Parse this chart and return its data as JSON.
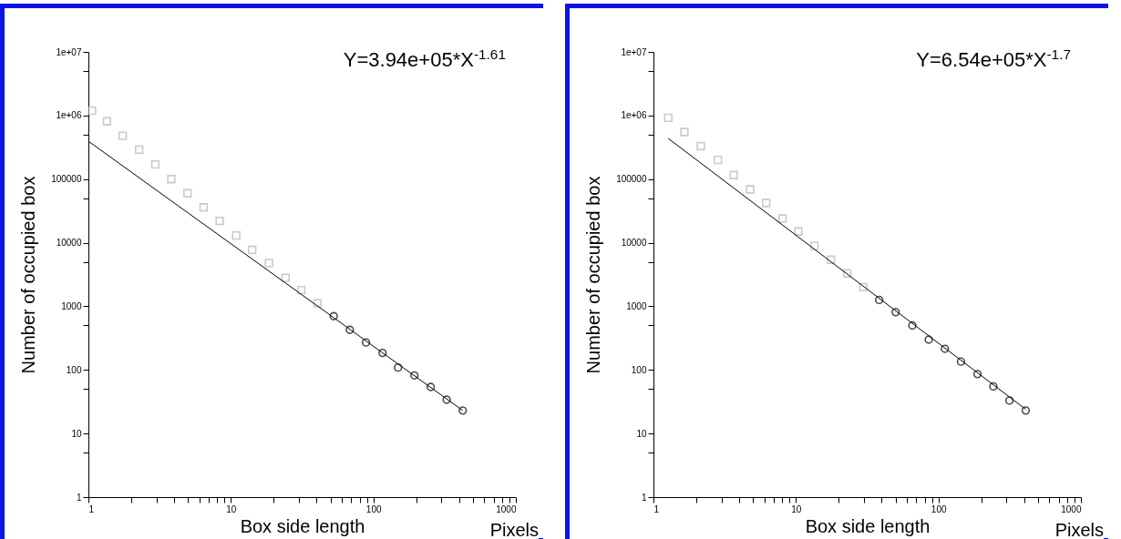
{
  "chart_data": [
    {
      "type": "scatter",
      "xlabel": "Box side length",
      "ylabel": "Number of occupied box",
      "annotations": [
        "Y=3.94e+05*X$^{-1.61}$",
        "Pixels"
      ],
      "log": "xy",
      "grid": false,
      "xlim": [
        1,
        1000
      ],
      "ylim": [
        1,
        10000000
      ],
      "xticks": [
        1,
        {
          "value": 2,
          "label": null
        },
        {
          "value": 3,
          "label": null
        },
        {
          "value": 4,
          "label": null
        },
        {
          "value": 5,
          "label": null
        },
        {
          "value": 6,
          "label": null
        },
        {
          "value": 7,
          "label": null
        },
        {
          "value": 8,
          "label": null
        },
        {
          "value": 9,
          "label": null
        },
        10,
        {
          "value": 20,
          "label": null
        },
        {
          "value": 30,
          "label": null
        },
        {
          "value": 40,
          "label": null
        },
        {
          "value": 50,
          "label": null
        },
        {
          "value": 60,
          "label": null
        },
        {
          "value": 70,
          "label": null
        },
        {
          "value": 80,
          "label": null
        },
        {
          "value": 90,
          "label": null
        },
        100,
        {
          "value": 200,
          "label": null
        },
        {
          "value": 300,
          "label": null
        },
        {
          "value": 400,
          "label": null
        },
        {
          "value": 500,
          "label": null
        },
        {
          "value": 600,
          "label": null
        },
        {
          "value": 700,
          "label": null
        },
        {
          "value": 800,
          "label": null
        },
        {
          "value": 900,
          "label": null
        },
        1000
      ],
      "yticks": [
        1,
        {
          "value": 5,
          "label": null
        },
        10,
        {
          "value": 50,
          "label": null
        },
        100,
        {
          "value": 500,
          "label": null
        },
        1000,
        {
          "value": 5000,
          "label": null
        },
        10000,
        {
          "value": 50000,
          "label": null
        },
        100000,
        {
          "value": 500000,
          "label": null
        },
        {
          "value": 1000000,
          "label": "1e+06"
        },
        {
          "value": 5000000,
          "label": null
        },
        {
          "value": 10000000,
          "label": "1e+07"
        }
      ],
      "series": [
        {
          "marker": "square",
          "color": "#b4b4b4",
          "x": [
            1.06,
            1.35,
            1.74,
            2.27,
            2.95,
            3.82,
            4.96,
            6.43,
            8.34,
            10.9,
            14.1,
            18.5,
            24.2,
            31.2,
            40.5
          ],
          "values": [
            1190000,
            810000,
            480000,
            290000,
            170000,
            100000,
            60000,
            36000,
            22000,
            13000,
            7700,
            4800,
            2800,
            1800,
            1120
          ]
        },
        {
          "marker": "circle",
          "color": "#000000",
          "x": [
            52.7,
            68.4,
            88.8,
            116,
            149,
            194,
            253,
            327,
            424
          ],
          "values": [
            700,
            427,
            270,
            185,
            109,
            82,
            54,
            34,
            23
          ]
        },
        {
          "type": "line",
          "color": "#000000",
          "x": [
            1,
            424
          ],
          "values": [
            394000,
            23
          ]
        }
      ]
    },
    {
      "type": "scatter",
      "xlabel": "Box side length",
      "ylabel": "Number of occupied box",
      "annotations": [
        "Y=6.54e+05*X$^{-1.7}$",
        "Pixels"
      ],
      "log": "xy",
      "grid": false,
      "xlim": [
        1,
        1000
      ],
      "ylim": [
        1,
        10000000
      ],
      "xticks": [
        1,
        {
          "value": 2,
          "label": null
        },
        {
          "value": 3,
          "label": null
        },
        {
          "value": 4,
          "label": null
        },
        {
          "value": 5,
          "label": null
        },
        {
          "value": 6,
          "label": null
        },
        {
          "value": 7,
          "label": null
        },
        {
          "value": 8,
          "label": null
        },
        {
          "value": 9,
          "label": null
        },
        10,
        {
          "value": 20,
          "label": null
        },
        {
          "value": 30,
          "label": null
        },
        {
          "value": 40,
          "label": null
        },
        {
          "value": 50,
          "label": null
        },
        {
          "value": 60,
          "label": null
        },
        {
          "value": 70,
          "label": null
        },
        {
          "value": 80,
          "label": null
        },
        {
          "value": 90,
          "label": null
        },
        100,
        {
          "value": 200,
          "label": null
        },
        {
          "value": 300,
          "label": null
        },
        {
          "value": 400,
          "label": null
        },
        {
          "value": 500,
          "label": null
        },
        {
          "value": 600,
          "label": null
        },
        {
          "value": 700,
          "label": null
        },
        {
          "value": 800,
          "label": null
        },
        {
          "value": 900,
          "label": null
        },
        1000
      ],
      "yticks": [
        1,
        {
          "value": 5,
          "label": null
        },
        10,
        {
          "value": 50,
          "label": null
        },
        100,
        {
          "value": 500,
          "label": null
        },
        1000,
        {
          "value": 5000,
          "label": null
        },
        10000,
        {
          "value": 50000,
          "label": null
        },
        100000,
        {
          "value": 500000,
          "label": null
        },
        {
          "value": 1000000,
          "label": "1e+06"
        },
        {
          "value": 5000000,
          "label": null
        },
        {
          "value": 10000000,
          "label": "1e+07"
        }
      ],
      "series": [
        {
          "marker": "square",
          "color": "#b4b4b4",
          "x": [
            1.27,
            1.65,
            2.15,
            2.83,
            3.66,
            4.77,
            6.18,
            8.05,
            10.4,
            13.5,
            17.6,
            22.9,
            29.7
          ],
          "values": [
            920000,
            550000,
            330000,
            200000,
            116000,
            69000,
            42000,
            24000,
            15000,
            8900,
            5400,
            3300,
            2000
          ]
        },
        {
          "marker": "circle",
          "color": "#000000",
          "x": [
            38.4,
            50.1,
            65.6,
            85.5,
            111,
            144,
            188,
            243,
            315,
            410
          ],
          "values": [
            1260,
            810,
            500,
            300,
            215,
            135,
            86,
            55,
            33,
            23
          ]
        },
        {
          "type": "line",
          "color": "#000000",
          "x": [
            1.27,
            410
          ],
          "values": [
            436000,
            24
          ]
        }
      ]
    }
  ]
}
